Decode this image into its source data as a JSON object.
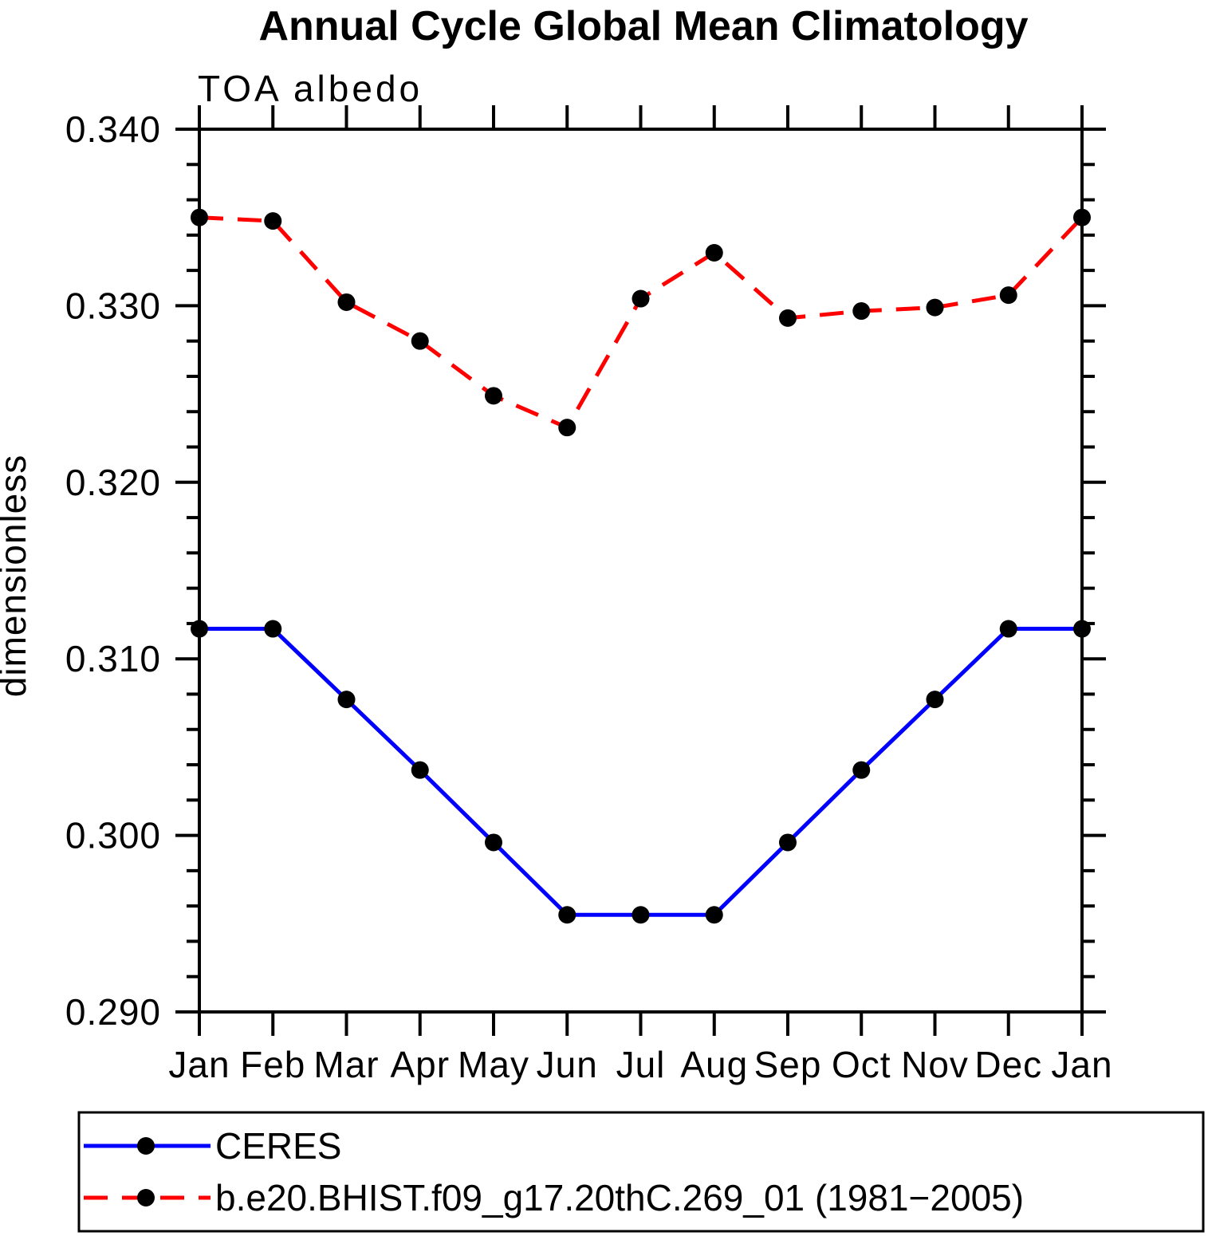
{
  "chart_data": {
    "type": "line",
    "title": "Annual Cycle Global Mean Climatology",
    "subtitle": "TOA albedo",
    "xlabel": "",
    "ylabel": "dimensionless",
    "categories": [
      "Jan",
      "Feb",
      "Mar",
      "Apr",
      "May",
      "Jun",
      "Jul",
      "Aug",
      "Sep",
      "Oct",
      "Nov",
      "Dec",
      "Jan"
    ],
    "ylim": [
      0.29,
      0.34
    ],
    "y_major_step": 0.01,
    "y_minor_step": 0.002,
    "y_tick_labels": [
      "0.290",
      "0.300",
      "0.310",
      "0.320",
      "0.330",
      "0.340"
    ],
    "grid": false,
    "legend_position": "bottom-left-box",
    "axis_color": "#000000",
    "marker_color": "#000000",
    "series": [
      {
        "name": "CERES",
        "color": "#0000ff",
        "line_style": "solid",
        "marker": "circle",
        "values": [
          0.3117,
          0.3117,
          0.3077,
          0.3037,
          0.2996,
          0.2955,
          0.2955,
          0.2955,
          0.2996,
          0.3037,
          0.3077,
          0.3117,
          0.3117
        ]
      },
      {
        "name": "b.e20.BHIST.f09_g17.20thC.269_01 (1981−2005)",
        "color": "#ff0000",
        "line_style": "dashed",
        "marker": "circle",
        "values": [
          0.335,
          0.3348,
          0.3302,
          0.328,
          0.3249,
          0.3231,
          0.3304,
          0.333,
          0.3293,
          0.3297,
          0.3299,
          0.3306,
          0.335
        ]
      }
    ]
  }
}
